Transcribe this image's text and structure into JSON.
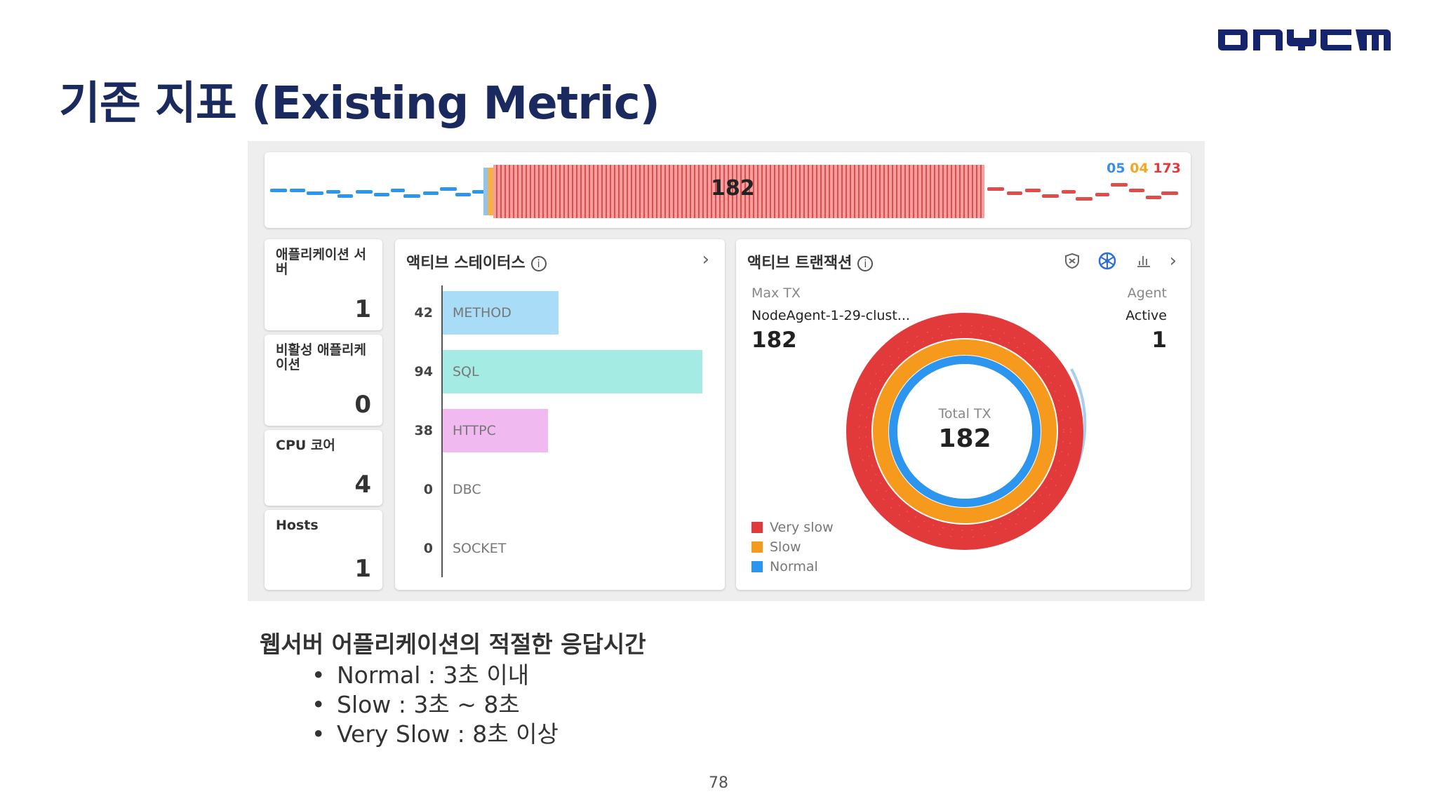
{
  "brand": {
    "logo_text": "ONYCOM",
    "color": "#16256b"
  },
  "slide": {
    "title": "기존 지표 (Existing Metric)",
    "page_number": "78"
  },
  "speed_bar": {
    "center_value": "182",
    "counts": [
      {
        "value": "05",
        "color": "#3a8ee6"
      },
      {
        "value": "04",
        "color": "#f5a623"
      },
      {
        "value": "173",
        "color": "#e23a3a"
      }
    ]
  },
  "metrics": [
    {
      "label": "애플리케이션 서버",
      "value": "1"
    },
    {
      "label": "비활성 애플리케이션",
      "value": "0"
    },
    {
      "label": "CPU 코어",
      "value": "4"
    },
    {
      "label": "Hosts",
      "value": "1"
    }
  ],
  "active_status": {
    "title": "액티브 스테이터스",
    "rows": [
      {
        "count": "42",
        "label": "METHOD",
        "value": 42,
        "color": "#a9dcf7"
      },
      {
        "count": "94",
        "label": "SQL",
        "value": 94,
        "color": "#a4ece3"
      },
      {
        "count": "38",
        "label": "HTTPC",
        "value": 38,
        "color": "#f0baf0"
      },
      {
        "count": "0",
        "label": "DBC",
        "value": 0,
        "color": "#dddddd"
      },
      {
        "count": "0",
        "label": "SOCKET",
        "value": 0,
        "color": "#dddddd"
      }
    ],
    "max": 94
  },
  "active_tx": {
    "title": "액티브 트랜잭션",
    "max_tx_label": "Max TX",
    "max_tx_agent": "NodeAgent-1-29-clust...",
    "max_tx_value": "182",
    "agent_label": "Agent",
    "active_label": "Active",
    "active_value": "1",
    "total_label": "Total TX",
    "total_value": "182",
    "legend": [
      {
        "label": "Very slow",
        "color": "#e23a3a"
      },
      {
        "label": "Slow",
        "color": "#f59a1c"
      },
      {
        "label": "Normal",
        "color": "#2b95ef"
      }
    ]
  },
  "notes": {
    "heading": "웹서버 어플리케이션의 적절한 응답시간",
    "items": [
      "Normal : 3초 이내",
      "Slow : 3초 ~ 8초",
      "Very Slow : 8초 이상"
    ]
  }
}
